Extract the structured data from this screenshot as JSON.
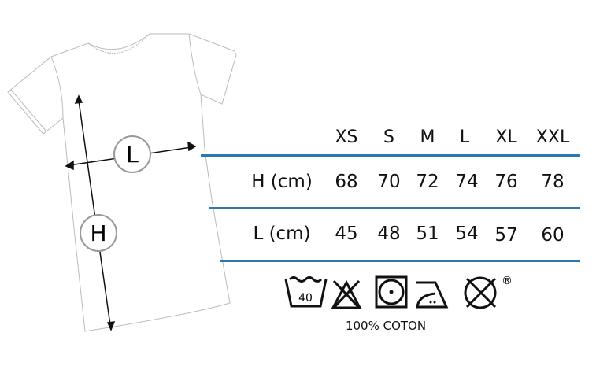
{
  "diagram": {
    "length_marker": "L",
    "height_marker": "H"
  },
  "size_table": {
    "sizes": [
      "XS",
      "S",
      "M",
      "L",
      "XL",
      "XXL"
    ],
    "rows": [
      {
        "label": "H (cm)",
        "values": [
          "68",
          "70",
          "72",
          "74",
          "76",
          "78"
        ]
      },
      {
        "label": "L (cm)",
        "values": [
          "45",
          "48",
          "51",
          "54",
          "57",
          "60"
        ]
      }
    ],
    "rule_color": "#2a78ad"
  },
  "care": {
    "icons": [
      "wash-40-icon",
      "no-bleach-icon",
      "tumble-dry-icon",
      "iron-medium-icon",
      "no-dry-clean-icon"
    ],
    "wash_temperature": "40",
    "registered_mark": "®",
    "material": "100% COTON"
  }
}
